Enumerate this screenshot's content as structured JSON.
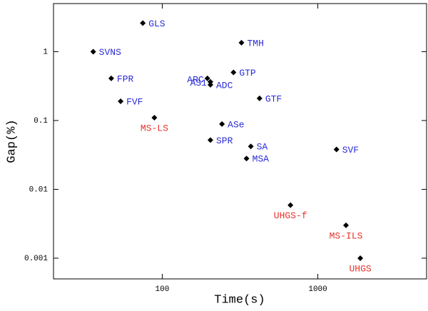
{
  "chart_data": {
    "type": "scatter",
    "xlabel": "Time(s)",
    "ylabel": "Gap(%)",
    "labels": [
      "GLS",
      "SVNS",
      "FPR",
      "FVF",
      "MS-LS",
      "TMH",
      "ARC",
      "AS1",
      "ADC",
      "GTP",
      "GTF",
      "ASe",
      "SPR",
      "SA",
      "MSA",
      "SVF",
      "UHGS-f",
      "MS-ILS",
      "UHGS"
    ],
    "x": [
      75,
      36,
      47,
      54,
      89,
      323,
      195,
      204,
      204,
      287,
      422,
      242,
      204,
      371,
      348,
      1318,
      667,
      1517,
      1875
    ],
    "values": [
      2.6,
      1.0,
      0.41,
      0.19,
      0.11,
      1.35,
      0.41,
      0.365,
      0.33,
      0.5,
      0.21,
      0.089,
      0.052,
      0.042,
      0.028,
      0.038,
      0.0059,
      0.003,
      0.001
    ],
    "label_colors": [
      "#2b2bd9",
      "#2b2bd9",
      "#2b2bd9",
      "#2b2bd9",
      "#e8302a",
      "#2b2bd9",
      "#2b2bd9",
      "#2b2bd9",
      "#2b2bd9",
      "#2b2bd9",
      "#2b2bd9",
      "#2b2bd9",
      "#2b2bd9",
      "#2b2bd9",
      "#2b2bd9",
      "#2b2bd9",
      "#e8302a",
      "#e8302a",
      "#e8302a"
    ],
    "marker_color": "#000000",
    "xscale": "log",
    "yscale": "log",
    "xlim": [
      20,
      5000
    ],
    "ylim": [
      0.0005,
      5
    ],
    "xticks": [
      100,
      1000
    ],
    "yticks": [
      0.001,
      0.01,
      0.1,
      1
    ]
  }
}
